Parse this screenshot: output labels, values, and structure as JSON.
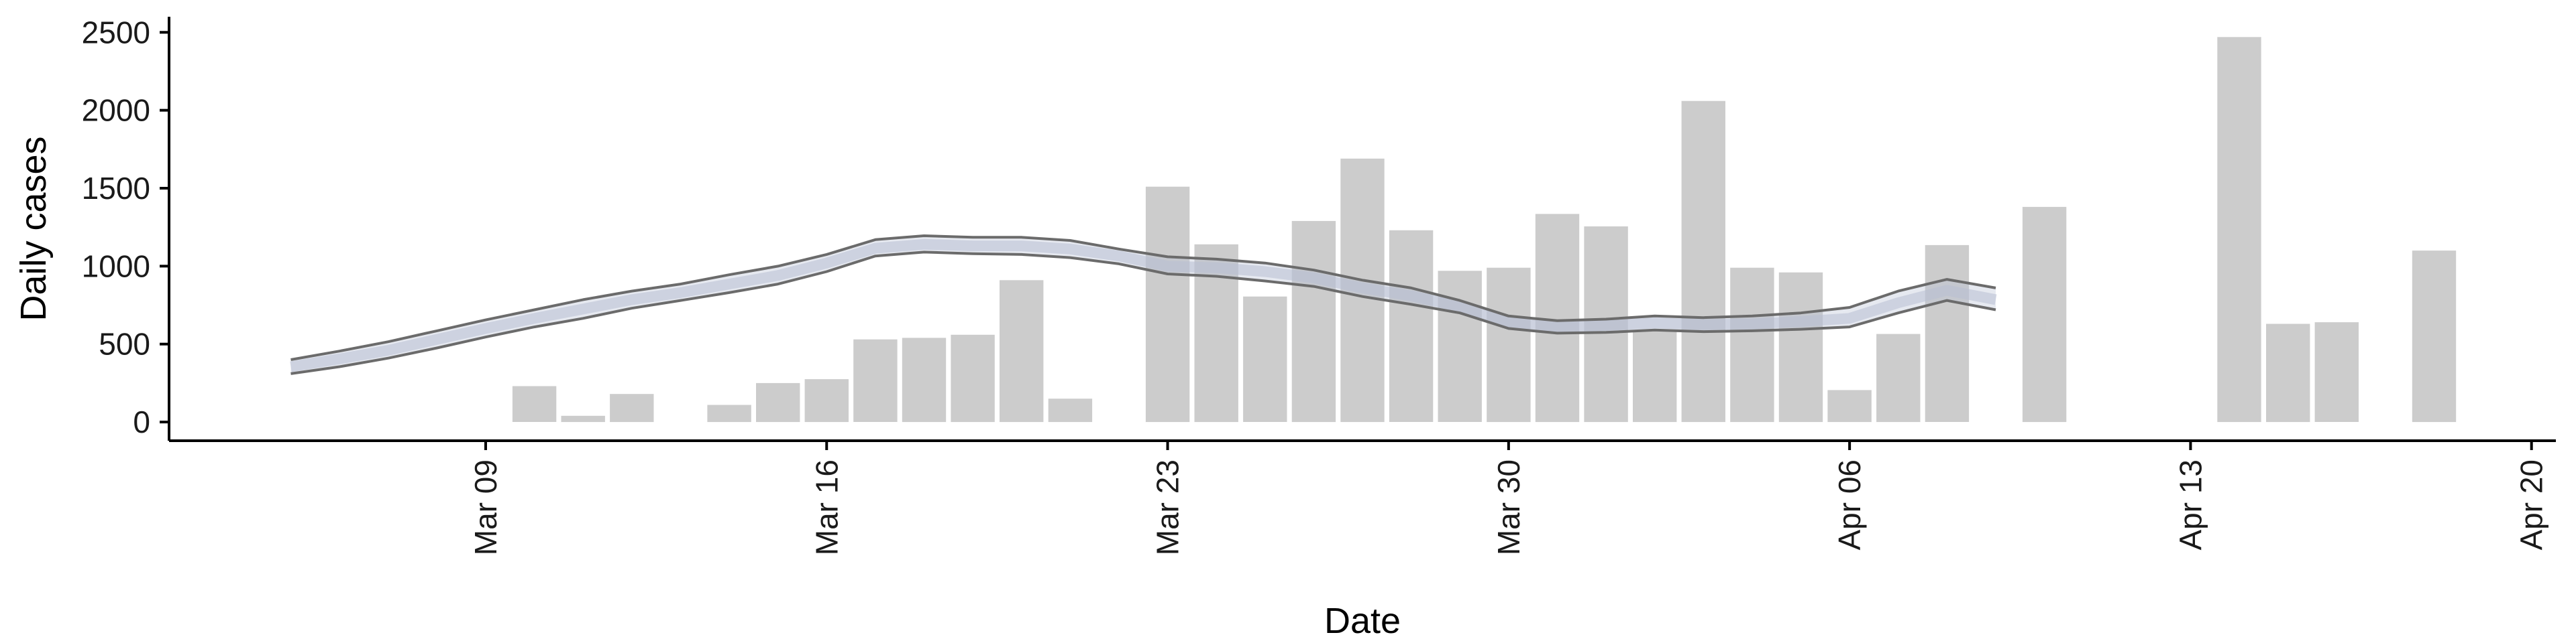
{
  "chart_data": {
    "type": "bar",
    "xlabel": "Date",
    "ylabel": "Daily cases",
    "ylim": [
      -120,
      2600
    ],
    "y_ticks": [
      0,
      500,
      1000,
      1500,
      2000,
      2500
    ],
    "y_tick_labels": [
      "0",
      "500",
      "1000",
      "1500",
      "2000",
      "2500"
    ],
    "x_range": [
      "2020-03-02T12:00",
      "2020-04-20T12:00"
    ],
    "x_ticks": [
      "2020-03-09",
      "2020-03-16",
      "2020-03-23",
      "2020-03-30",
      "2020-04-06",
      "2020-04-13",
      "2020-04-20"
    ],
    "x_tick_labels": [
      "Mar 09",
      "Mar 16",
      "Mar 23",
      "Mar 30",
      "Apr 06",
      "Apr 13",
      "Apr 20"
    ],
    "grid": false,
    "colors": {
      "bars": "#cccccc",
      "ribbon_edge": "#6b6b6b",
      "ribbon_fill": "#b8bfd4",
      "axis": "#000000"
    },
    "bars": {
      "dates": [
        "2020-03-10",
        "2020-03-11",
        "2020-03-12",
        "2020-03-14",
        "2020-03-15",
        "2020-03-16",
        "2020-03-17",
        "2020-03-18",
        "2020-03-19",
        "2020-03-20",
        "2020-03-21",
        "2020-03-23",
        "2020-03-24",
        "2020-03-25",
        "2020-03-26",
        "2020-03-27",
        "2020-03-28",
        "2020-03-29",
        "2020-03-30",
        "2020-03-31",
        "2020-04-01",
        "2020-04-02",
        "2020-04-03",
        "2020-04-04",
        "2020-04-05",
        "2020-04-06",
        "2020-04-07",
        "2020-04-08",
        "2020-04-10",
        "2020-04-14",
        "2020-04-15",
        "2020-04-16",
        "2020-04-18"
      ],
      "values": [
        230,
        40,
        180,
        110,
        250,
        275,
        530,
        540,
        560,
        910,
        150,
        1510,
        1140,
        805,
        1290,
        1690,
        1230,
        970,
        990,
        1335,
        1255,
        590,
        2060,
        990,
        960,
        205,
        565,
        1135,
        1380,
        2470,
        630,
        640,
        1100
      ]
    },
    "series": [
      {
        "role": "upper",
        "x": [
          "2020-03-05",
          "2020-03-06",
          "2020-03-07",
          "2020-03-08",
          "2020-03-09",
          "2020-03-10",
          "2020-03-11",
          "2020-03-12",
          "2020-03-13",
          "2020-03-14",
          "2020-03-15",
          "2020-03-16",
          "2020-03-17",
          "2020-03-18",
          "2020-03-19",
          "2020-03-20",
          "2020-03-21",
          "2020-03-22",
          "2020-03-23",
          "2020-03-24",
          "2020-03-25",
          "2020-03-26",
          "2020-03-27",
          "2020-03-28",
          "2020-03-29",
          "2020-03-30",
          "2020-03-31",
          "2020-04-01",
          "2020-04-02",
          "2020-04-03",
          "2020-04-04",
          "2020-04-05",
          "2020-04-06",
          "2020-04-07",
          "2020-04-08",
          "2020-04-09"
        ],
        "values": [
          400,
          455,
          515,
          585,
          655,
          720,
          785,
          840,
          885,
          945,
          1000,
          1075,
          1170,
          1195,
          1185,
          1185,
          1165,
          1110,
          1060,
          1045,
          1020,
          975,
          910,
          860,
          780,
          680,
          650,
          660,
          680,
          670,
          680,
          700,
          735,
          840,
          915,
          860
        ]
      },
      {
        "role": "median",
        "x": [
          "2020-03-05",
          "2020-03-06",
          "2020-03-07",
          "2020-03-08",
          "2020-03-09",
          "2020-03-10",
          "2020-03-11",
          "2020-03-12",
          "2020-03-13",
          "2020-03-14",
          "2020-03-15",
          "2020-03-16",
          "2020-03-17",
          "2020-03-18",
          "2020-03-19",
          "2020-03-20",
          "2020-03-21",
          "2020-03-22",
          "2020-03-23",
          "2020-03-24",
          "2020-03-25",
          "2020-03-26",
          "2020-03-27",
          "2020-03-28",
          "2020-03-29",
          "2020-03-30",
          "2020-03-31",
          "2020-04-01",
          "2020-04-02",
          "2020-04-03",
          "2020-04-04",
          "2020-04-05",
          "2020-04-06",
          "2020-04-07",
          "2020-04-08",
          "2020-04-09"
        ],
        "values": [
          355,
          405,
          460,
          530,
          600,
          665,
          725,
          785,
          830,
          885,
          940,
          1020,
          1115,
          1140,
          1130,
          1130,
          1110,
          1065,
          1000,
          990,
          965,
          925,
          860,
          810,
          740,
          640,
          610,
          620,
          635,
          625,
          630,
          645,
          665,
          765,
          845,
          785
        ]
      },
      {
        "role": "lower",
        "x": [
          "2020-03-05",
          "2020-03-06",
          "2020-03-07",
          "2020-03-08",
          "2020-03-09",
          "2020-03-10",
          "2020-03-11",
          "2020-03-12",
          "2020-03-13",
          "2020-03-14",
          "2020-03-15",
          "2020-03-16",
          "2020-03-17",
          "2020-03-18",
          "2020-03-19",
          "2020-03-20",
          "2020-03-21",
          "2020-03-22",
          "2020-03-23",
          "2020-03-24",
          "2020-03-25",
          "2020-03-26",
          "2020-03-27",
          "2020-03-28",
          "2020-03-29",
          "2020-03-30",
          "2020-03-31",
          "2020-04-01",
          "2020-04-02",
          "2020-04-03",
          "2020-04-04",
          "2020-04-05",
          "2020-04-06",
          "2020-04-07",
          "2020-04-08",
          "2020-04-09"
        ],
        "values": [
          310,
          355,
          410,
          475,
          545,
          610,
          665,
          730,
          780,
          830,
          885,
          965,
          1065,
          1090,
          1080,
          1075,
          1055,
          1015,
          950,
          935,
          905,
          870,
          805,
          755,
          700,
          600,
          570,
          575,
          590,
          580,
          585,
          595,
          610,
          700,
          780,
          720
        ]
      }
    ]
  }
}
